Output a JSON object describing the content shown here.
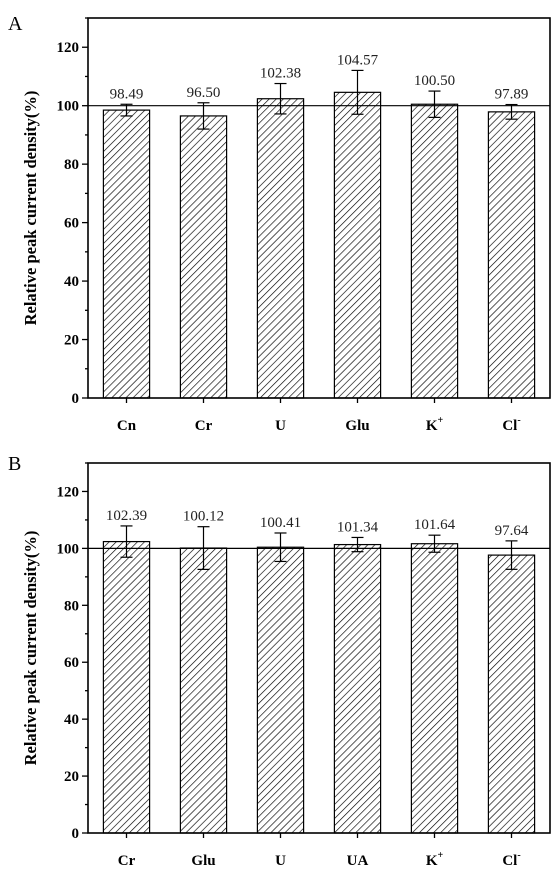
{
  "chart_data": [
    {
      "type": "bar",
      "panel": "A",
      "ylabel": "Relative peak current density(%)",
      "categories": [
        {
          "base": "Cn",
          "sup": ""
        },
        {
          "base": "Cr",
          "sup": ""
        },
        {
          "base": "U",
          "sup": ""
        },
        {
          "base": "Glu",
          "sup": ""
        },
        {
          "base": "K",
          "sup": "+"
        },
        {
          "base": "Cl",
          "sup": "-"
        }
      ],
      "values": [
        98.49,
        96.5,
        102.38,
        104.57,
        100.5,
        97.89
      ],
      "value_labels": [
        "98.49",
        "96.50",
        "102.38",
        "104.57",
        "100.50",
        "97.89"
      ],
      "error": [
        2.0,
        4.5,
        5.2,
        7.5,
        4.5,
        2.5
      ],
      "ylim": [
        0,
        130
      ],
      "yticks": [
        0,
        20,
        40,
        60,
        80,
        100,
        120
      ],
      "reference_line": 100,
      "grid": false,
      "bar_fill": "diagonal-hatch"
    },
    {
      "type": "bar",
      "panel": "B",
      "ylabel": "Relative peak current density(%)",
      "categories": [
        {
          "base": "Cr",
          "sup": ""
        },
        {
          "base": "Glu",
          "sup": ""
        },
        {
          "base": "U",
          "sup": ""
        },
        {
          "base": "UA",
          "sup": ""
        },
        {
          "base": "K",
          "sup": "+"
        },
        {
          "base": "Cl",
          "sup": "-"
        }
      ],
      "values": [
        102.39,
        100.12,
        100.41,
        101.34,
        101.64,
        97.64
      ],
      "value_labels": [
        "102.39",
        "100.12",
        "100.41",
        "101.34",
        "101.64",
        "97.64"
      ],
      "error": [
        5.5,
        7.5,
        5.0,
        2.5,
        3.0,
        5.0
      ],
      "ylim": [
        0,
        130
      ],
      "yticks": [
        0,
        20,
        40,
        60,
        80,
        100,
        120
      ],
      "reference_line": 100,
      "grid": false,
      "bar_fill": "diagonal-hatch"
    }
  ]
}
